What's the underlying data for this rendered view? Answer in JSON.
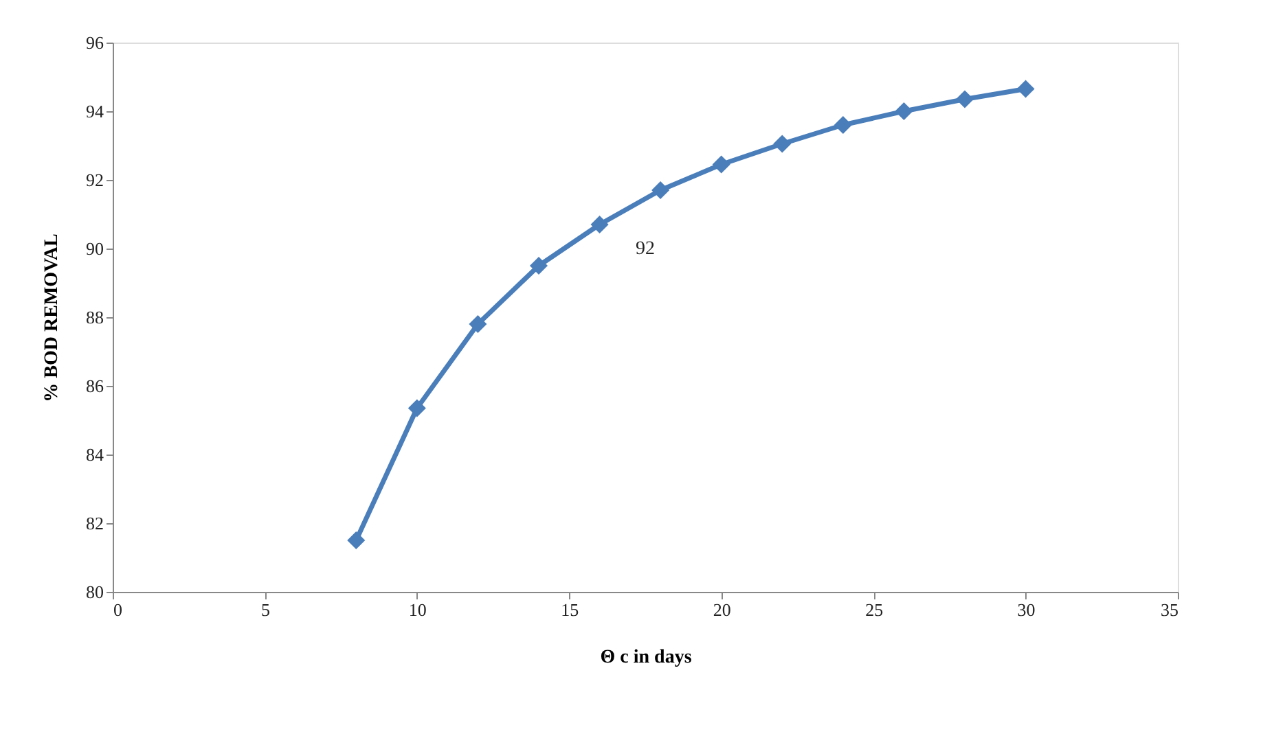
{
  "chart_data": {
    "type": "line",
    "xlabel": "Θ c in days",
    "ylabel": "% BOD REMOVAL",
    "x": [
      8,
      10,
      12,
      14,
      16,
      18,
      20,
      22,
      24,
      26,
      28,
      30
    ],
    "series": [
      {
        "color": "#4a7ebb",
        "values": [
          81.5,
          85.35,
          87.8,
          89.5,
          90.7,
          91.7,
          92.45,
          93.05,
          93.6,
          94.0,
          94.35,
          94.65
        ]
      }
    ],
    "xlim": [
      0,
      35
    ],
    "xticks": [
      0,
      5,
      10,
      15,
      20,
      25,
      30,
      35
    ],
    "ylim": [
      80,
      96
    ],
    "yticks": [
      80,
      82,
      84,
      86,
      88,
      90,
      92,
      94,
      96
    ],
    "grid": false,
    "marker": "diamond",
    "line_style": "solid",
    "annotations": [
      "92"
    ]
  }
}
